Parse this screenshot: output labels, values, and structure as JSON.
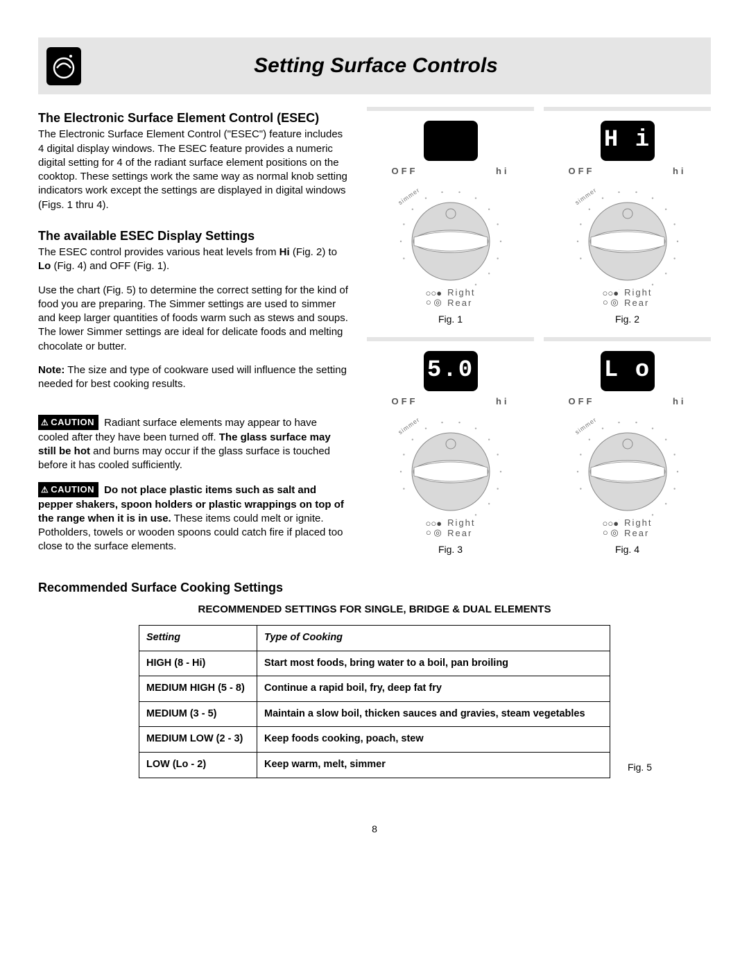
{
  "page": {
    "title": "Setting Surface Controls",
    "number": "8"
  },
  "sections": {
    "esec": {
      "heading": "The Electronic Surface Element Control (ESEC)",
      "body": "The Electronic Surface Element Control (\"ESEC\") feature includes 4 digital display windows. The ESEC feature provides a numeric digital setting for 4 of the radiant surface element positions on the cooktop. These settings work the same way as normal knob setting indicators work except the settings are displayed in digital windows (Figs. 1 thru 4)."
    },
    "display_settings": {
      "heading": "The available ESEC Display Settings",
      "p1_pre": "The ESEC control provides various heat levels from ",
      "p1_hi": "Hi",
      "p1_mid": " (Fig. 2) to ",
      "p1_lo": "Lo",
      "p1_post": " (Fig. 4) and OFF (Fig. 1).",
      "p2": "Use the chart (Fig. 5) to determine the correct setting for the kind of food you are preparing. The Simmer settings are used to simmer and keep larger quantities of foods warm such as stews and soups. The lower Simmer settings are ideal for delicate foods and melting chocolate or butter.",
      "note_label": "Note:",
      "note_body": " The size and type of cookware used will influence the setting needed for best cooking results."
    },
    "cautions": {
      "badge": "CAUTION",
      "c1_pre": " Radiant surface elements may appear to have cooled after they have been turned off. ",
      "c1_bold": "The glass surface may still be hot",
      "c1_post": " and burns may occur if the glass surface is touched before it has cooled sufficiently.",
      "c2_bold": " Do not place plastic items such as salt and pepper shakers, spoon holders or plastic wrappings on top of the range when it is in use.",
      "c2_post": " These items could melt or ignite. Potholders, towels or wooden spoons could catch fire if placed too close to the surface elements."
    },
    "recommended": {
      "heading": "Recommended Surface Cooking Settings",
      "table_title": "RECOMMENDED SETTINGS FOR SINGLE, BRIDGE & DUAL ELEMENTS",
      "columns": [
        "Setting",
        "Type of Cooking"
      ],
      "rows": [
        [
          "HIGH (8 - Hi)",
          "Start most foods, bring water to a boil, pan broiling"
        ],
        [
          "MEDIUM HIGH (5 - 8)",
          "Continue a rapid boil, fry, deep fat fry"
        ],
        [
          "MEDIUM (3 - 5)",
          "Maintain a slow boil, thicken sauces and gravies, steam vegetables"
        ],
        [
          "MEDIUM LOW (2 - 3)",
          "Keep foods cooking, poach, stew"
        ],
        [
          "LOW (Lo - 2)",
          "Keep warm, melt, simmer"
        ]
      ],
      "fig5": "Fig. 5"
    }
  },
  "knobs": {
    "off_label": "OFF",
    "hi_label": "hi",
    "simmer_label": "simmer",
    "right_label_line1": "Right",
    "right_label_line2": "Rear",
    "panels": [
      {
        "display": "",
        "caption": "Fig. 1"
      },
      {
        "display": "H i",
        "caption": "Fig. 2"
      },
      {
        "display": "5.0",
        "caption": "Fig. 3"
      },
      {
        "display": "L o",
        "caption": "Fig. 4"
      }
    ],
    "colors": {
      "knob_body": "#d9d9d9",
      "knob_pointer": "#ffffff",
      "knob_outline": "#888888",
      "dots": "#aaaaaa",
      "display_bg": "#000000",
      "display_fg": "#ffffff"
    }
  }
}
